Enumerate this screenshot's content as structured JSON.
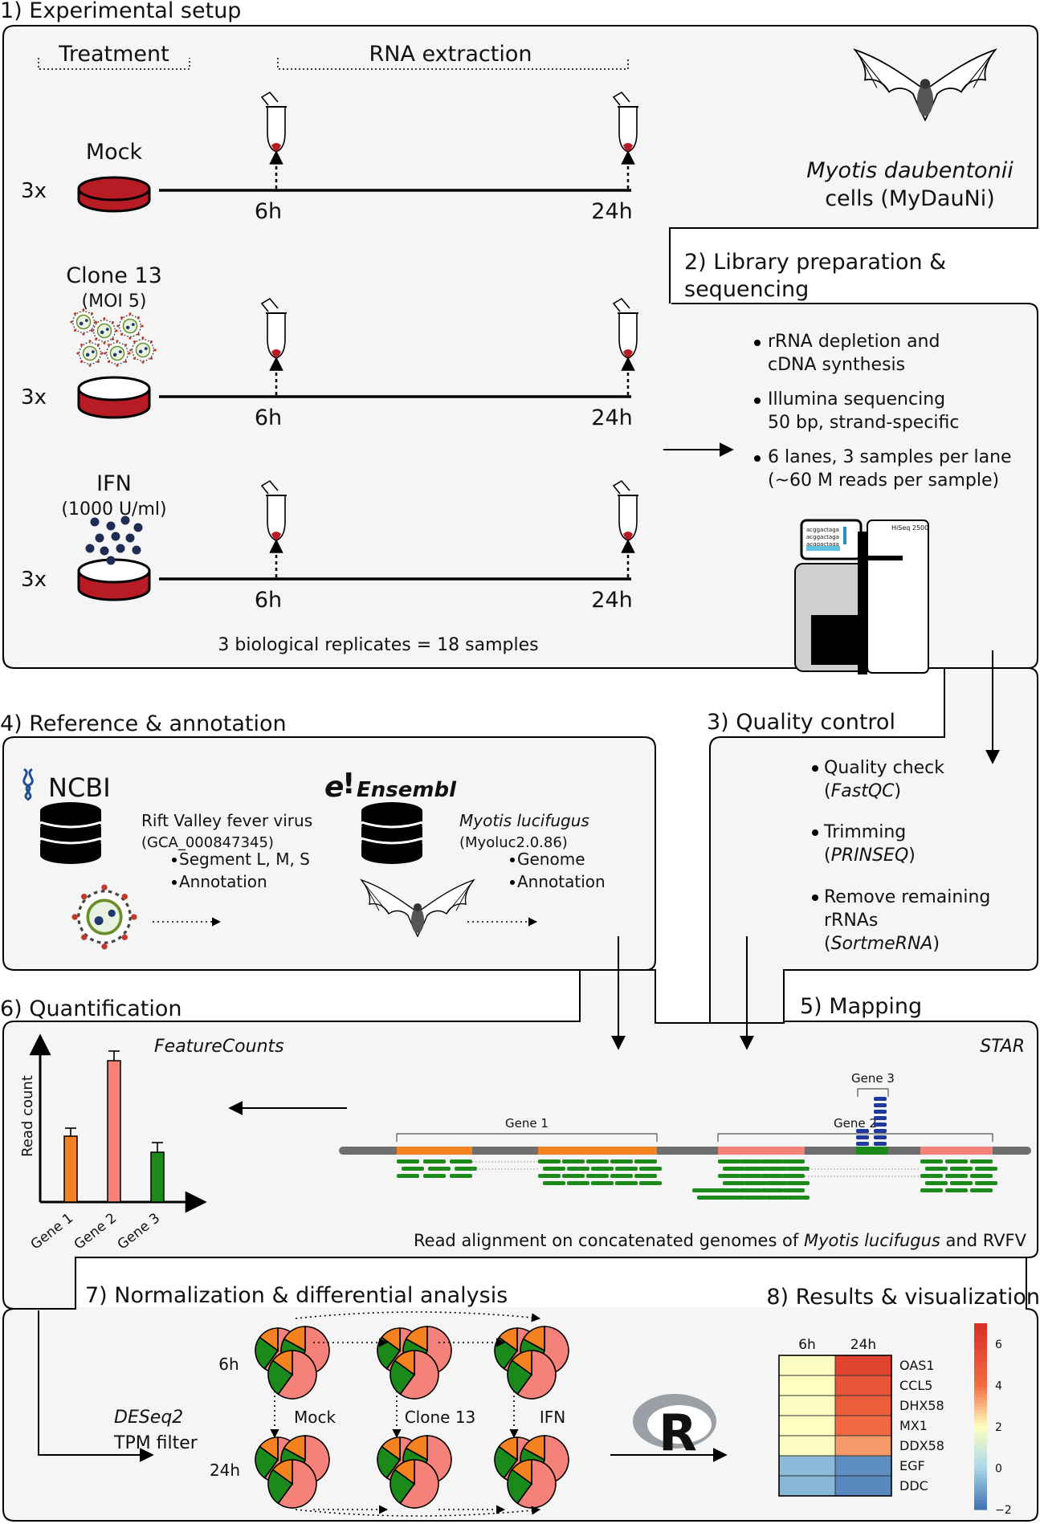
{
  "setup": {
    "title": "1) Experimental setup",
    "treatment_label": "Treatment",
    "rna_label": "RNA extraction",
    "rows": [
      {
        "name": "Mock",
        "sub": "",
        "rep": "3x",
        "t1": "6h",
        "t2": "24h"
      },
      {
        "name": "Clone 13",
        "sub": "(MOI 5)",
        "rep": "3x",
        "t1": "6h",
        "t2": "24h"
      },
      {
        "name": "IFN",
        "sub": "(1000 U/ml)",
        "rep": "3x",
        "t1": "6h",
        "t2": "24h"
      }
    ],
    "species": "Myotis daubentonii",
    "cells": "cells (MyDauNi)",
    "replicates": "3 biological replicates = 18 samples"
  },
  "library": {
    "title_line1": "2) Library preparation &",
    "title_line2": "sequencing",
    "bullets": [
      [
        "rRNA depletion and",
        "cDNA synthesis"
      ],
      [
        "Illumina sequencing",
        "50 bp, strand-specific"
      ],
      [
        "6 lanes, 3 samples per lane",
        "(~60 M reads per sample)"
      ]
    ],
    "sequencer_label": "HiSeq 2500",
    "screen_lines": [
      "acggactaga",
      "acggactaga",
      "acggactaga"
    ]
  },
  "reference": {
    "title": "4) Reference & annotation",
    "ncbi_logo": "NCBI",
    "ensembl_logo": "Ensembl",
    "virus_name": "Rift Valley fever virus",
    "virus_id": "(GCA_000847345)",
    "virus_items": [
      "Segment L, M, S",
      "Annotation"
    ],
    "bat_name": "Myotis lucifugus",
    "bat_id": "(Myoluc2.0.86)",
    "bat_items": [
      "Genome",
      "Annotation"
    ]
  },
  "qc": {
    "title": "3) Quality control",
    "bullets": [
      {
        "line1": "Quality check",
        "lines": [],
        "tool": "FastQC"
      },
      {
        "line1": "Trimming",
        "lines": [],
        "tool": "PRINSEQ"
      },
      {
        "line1": "Remove remaining",
        "lines": [
          "rRNAs"
        ],
        "tool": "SortmeRNA"
      }
    ]
  },
  "quant": {
    "title": "6) Quantification",
    "tool": "FeatureCounts",
    "ylabel": "Read count",
    "colors": {
      "gene1": "#f58220",
      "gene2": "#f4827a",
      "gene3": "#1b8a1b"
    }
  },
  "chart_data": {
    "type": "bar",
    "categories": [
      "Gene 1",
      "Gene 2",
      "Gene 3"
    ],
    "values": [
      0.41,
      0.88,
      0.31
    ],
    "errors": [
      0.05,
      0.06,
      0.06
    ],
    "title": "",
    "xlabel": "",
    "ylabel": "Read count",
    "ylim": [
      0,
      1
    ]
  },
  "mapping": {
    "title": "5) Mapping",
    "tool": "STAR",
    "genes": [
      "Gene 1",
      "Gene 2",
      "Gene 3"
    ],
    "caption_pre": "Read alignment on concatenated genomes of ",
    "caption_it": "Myotis lucifugus",
    "caption_post": " and RVFV"
  },
  "norm": {
    "title": "7) Normalization & differential analysis",
    "tool": "DESeq2",
    "filter": "TPM filter",
    "time1": "6h",
    "time2": "24h",
    "groups": [
      "Mock",
      "Clone 13",
      "IFN"
    ]
  },
  "results": {
    "title": "8) Results & visualization",
    "cols": [
      "6h",
      "24h"
    ],
    "rows": [
      "OAS1",
      "CCL5",
      "DHX58",
      "MX1",
      "DDX58",
      "EGF",
      "DDC"
    ],
    "colorbar_ticks": [
      "6",
      "4",
      "2",
      "0",
      "−2"
    ],
    "r_logo": "R"
  },
  "heatmap_data": {
    "values_6h": [
      1.9,
      2.0,
      1.9,
      2.0,
      1.9,
      -0.6,
      -0.7
    ],
    "values_24h": [
      6.0,
      5.2,
      4.8,
      4.2,
      3.4,
      -1.5,
      -1.6
    ],
    "range": [
      -2,
      7
    ]
  }
}
